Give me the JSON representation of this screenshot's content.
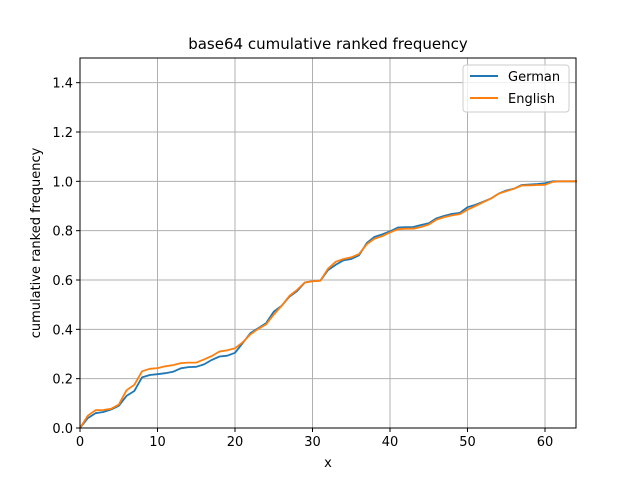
{
  "chart_data": {
    "type": "line",
    "title": "base64 cumulative ranked frequency",
    "xlabel": "x",
    "ylabel": "cumulative ranked frequency",
    "xlim": [
      0,
      64
    ],
    "ylim": [
      0,
      1.5
    ],
    "xticks": [
      "0",
      "10",
      "20",
      "30",
      "40",
      "50",
      "60"
    ],
    "yticks": [
      "0.0",
      "0.2",
      "0.4",
      "0.6",
      "0.8",
      "1.0",
      "1.2",
      "1.4"
    ],
    "grid": true,
    "legend_position": "top-right",
    "x": [
      0,
      1,
      2,
      3,
      4,
      5,
      6,
      7,
      8,
      9,
      10,
      11,
      12,
      13,
      14,
      15,
      16,
      17,
      18,
      19,
      20,
      21,
      22,
      23,
      24,
      25,
      26,
      27,
      28,
      29,
      30,
      31,
      32,
      33,
      34,
      35,
      36,
      37,
      38,
      39,
      40,
      41,
      42,
      43,
      44,
      45,
      46,
      47,
      48,
      49,
      50,
      51,
      52,
      53,
      54,
      55,
      56,
      57,
      58,
      59,
      60,
      61,
      62,
      63,
      64
    ],
    "series": [
      {
        "name": "German",
        "color": "#1f77b4",
        "values": [
          0.0,
          0.04,
          0.06,
          0.065,
          0.075,
          0.09,
          0.13,
          0.15,
          0.205,
          0.215,
          0.218,
          0.222,
          0.228,
          0.242,
          0.247,
          0.248,
          0.258,
          0.276,
          0.29,
          0.293,
          0.305,
          0.345,
          0.385,
          0.405,
          0.425,
          0.472,
          0.495,
          0.532,
          0.555,
          0.59,
          0.595,
          0.597,
          0.64,
          0.662,
          0.68,
          0.685,
          0.7,
          0.75,
          0.775,
          0.785,
          0.797,
          0.813,
          0.814,
          0.815,
          0.823,
          0.83,
          0.85,
          0.86,
          0.868,
          0.872,
          0.895,
          0.905,
          0.917,
          0.93,
          0.95,
          0.963,
          0.97,
          0.985,
          0.987,
          0.989,
          0.992,
          1.0,
          1.0,
          1.0,
          1.0
        ]
      },
      {
        "name": "English",
        "color": "#ff7f0e",
        "values": [
          0.0,
          0.05,
          0.072,
          0.073,
          0.078,
          0.095,
          0.153,
          0.175,
          0.23,
          0.24,
          0.243,
          0.25,
          0.255,
          0.263,
          0.265,
          0.265,
          0.278,
          0.292,
          0.31,
          0.315,
          0.323,
          0.348,
          0.38,
          0.402,
          0.42,
          0.46,
          0.495,
          0.535,
          0.56,
          0.59,
          0.595,
          0.597,
          0.646,
          0.674,
          0.685,
          0.692,
          0.705,
          0.745,
          0.768,
          0.778,
          0.793,
          0.806,
          0.808,
          0.808,
          0.815,
          0.825,
          0.845,
          0.855,
          0.862,
          0.867,
          0.885,
          0.9,
          0.915,
          0.93,
          0.95,
          0.96,
          0.97,
          0.983,
          0.984,
          0.985,
          0.986,
          0.998,
          1.0,
          1.0,
          1.0
        ]
      }
    ]
  }
}
